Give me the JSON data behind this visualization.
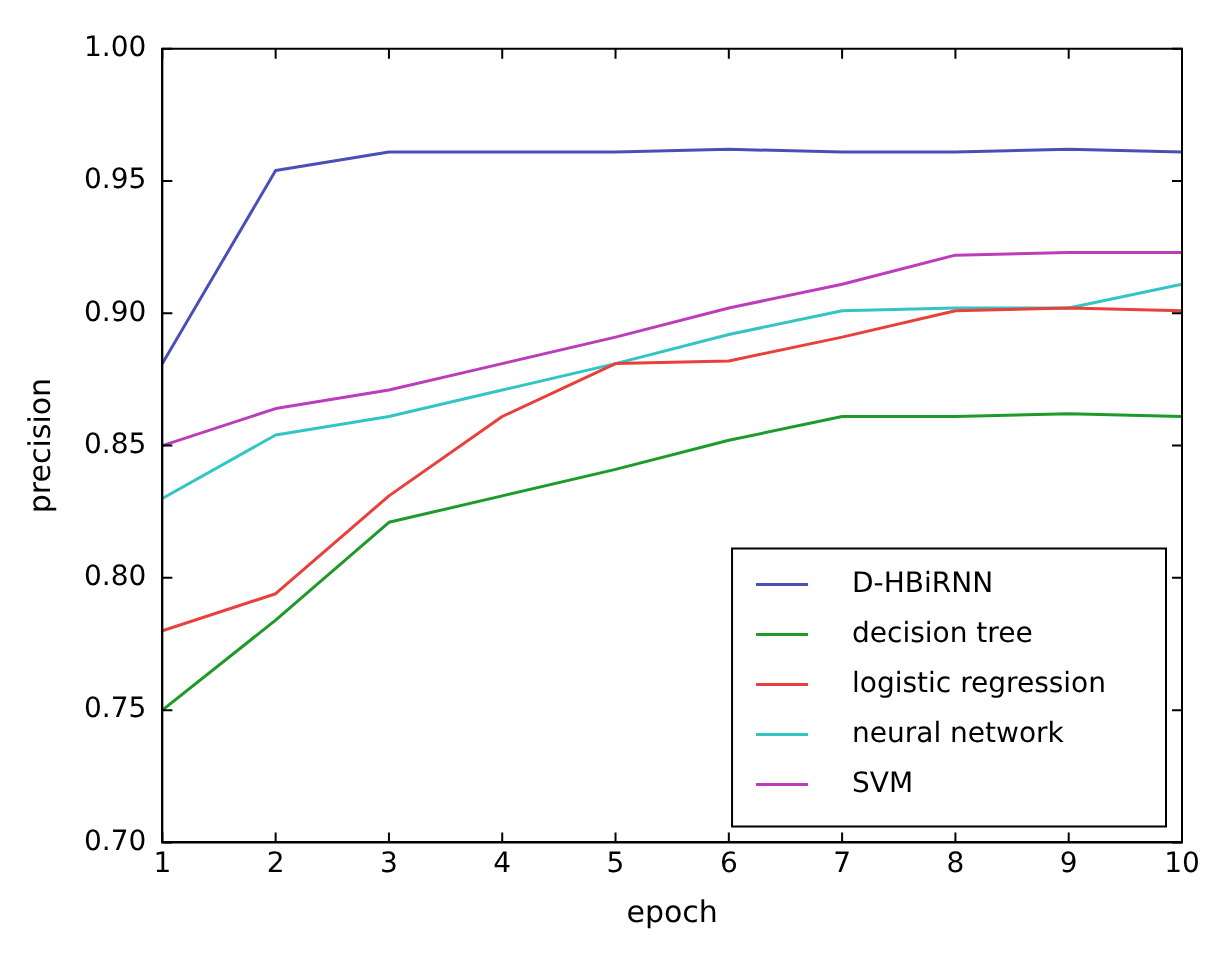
{
  "chart_data": {
    "type": "line",
    "xlabel": "epoch",
    "ylabel": "precision",
    "x": [
      1,
      2,
      3,
      4,
      5,
      6,
      7,
      8,
      9,
      10
    ],
    "xlim": [
      1,
      10
    ],
    "xticks": [
      1,
      2,
      3,
      4,
      5,
      6,
      7,
      8,
      9,
      10
    ],
    "ylim": [
      0.7,
      1.0
    ],
    "yticks": [
      {
        "value": 0.7,
        "label": "0.70"
      },
      0.75,
      {
        "value": 0.8,
        "label": "0.80"
      },
      0.85,
      {
        "value": 0.9,
        "label": "0.90"
      },
      0.95,
      {
        "value": 1,
        "label": "1.00"
      }
    ],
    "grid": false,
    "legend": "bottom right",
    "marker": "none",
    "line_style": "solid",
    "series": [
      {
        "name": "D-HBiRNN",
        "color": "#4a4fb8",
        "values": [
          0.881,
          0.954,
          0.961,
          0.961,
          0.961,
          0.962,
          0.961,
          0.961,
          0.962,
          0.961
        ]
      },
      {
        "name": "decision tree",
        "color": "#1e9a2a",
        "values": [
          0.75,
          0.784,
          0.821,
          0.831,
          0.841,
          0.852,
          0.861,
          0.861,
          0.862,
          0.861
        ]
      },
      {
        "name": "logistic regression",
        "color": "#e8403a",
        "values": [
          0.78,
          0.794,
          0.831,
          0.861,
          0.881,
          0.882,
          0.891,
          0.901,
          0.902,
          0.901
        ]
      },
      {
        "name": "neural network",
        "color": "#33c4c4",
        "values": [
          0.83,
          0.854,
          0.861,
          0.871,
          0.881,
          0.892,
          0.901,
          0.902,
          0.902,
          0.911
        ]
      },
      {
        "name": "SVM",
        "color": "#bb3dbb",
        "values": [
          0.85,
          0.864,
          0.871,
          0.881,
          0.891,
          0.902,
          0.911,
          0.922,
          0.923,
          0.923
        ]
      }
    ]
  }
}
